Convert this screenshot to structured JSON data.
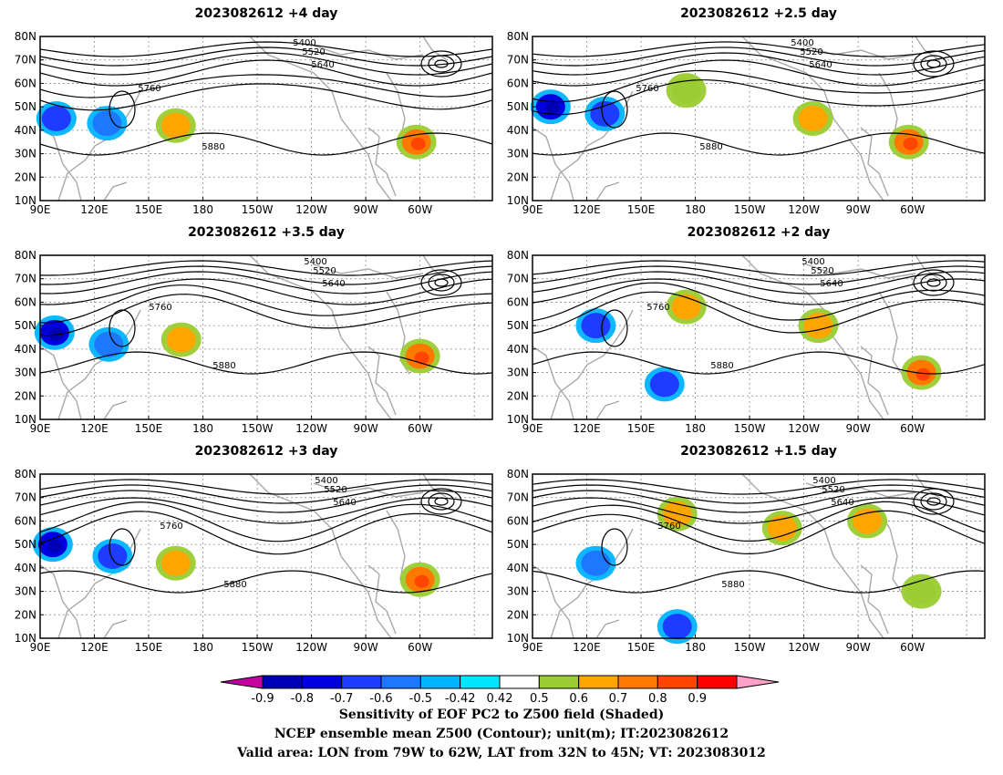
{
  "panels": [
    {
      "id": "p1",
      "title": "2023082612 +4 day"
    },
    {
      "id": "p2",
      "title": "2023082612 +2.5 day"
    },
    {
      "id": "p3",
      "title": "2023082612 +3.5 day"
    },
    {
      "id": "p4",
      "title": "2023082612 +2 day"
    },
    {
      "id": "p5",
      "title": "2023082612 +3 day"
    },
    {
      "id": "p6",
      "title": "2023082612 +1.5 day"
    }
  ],
  "map": {
    "lon_range": [
      90,
      340
    ],
    "lat_range": [
      10,
      80
    ],
    "lat_ticks": [
      "10N",
      "20N",
      "30N",
      "40N",
      "50N",
      "60N",
      "70N",
      "80N"
    ],
    "lon_ticks": [
      "90E",
      "120E",
      "150E",
      "180",
      "150W",
      "120W",
      "90W",
      "60W"
    ],
    "contour_labels": [
      "5400",
      "5520",
      "5640",
      "5760",
      "5880"
    ],
    "sensitivity_regions": [
      {
        "panel": 0,
        "lon": 165,
        "lat": 42,
        "value": 0.6
      },
      {
        "panel": 0,
        "lon": 298,
        "lat": 35,
        "value": 0.7
      },
      {
        "panel": 0,
        "lon": 99,
        "lat": 45,
        "value": -0.6
      },
      {
        "panel": 0,
        "lon": 127,
        "lat": 43,
        "value": -0.5
      },
      {
        "panel": 1,
        "lon": 100,
        "lat": 50,
        "value": -0.7
      },
      {
        "panel": 1,
        "lon": 130,
        "lat": 47,
        "value": -0.6
      },
      {
        "panel": 1,
        "lon": 245,
        "lat": 45,
        "value": 0.6
      },
      {
        "panel": 1,
        "lon": 298,
        "lat": 35,
        "value": 0.7
      },
      {
        "panel": 1,
        "lon": 175,
        "lat": 57,
        "value": 0.5
      },
      {
        "panel": 2,
        "lon": 98,
        "lat": 47,
        "value": -0.7
      },
      {
        "panel": 2,
        "lon": 168,
        "lat": 44,
        "value": 0.6
      },
      {
        "panel": 2,
        "lon": 300,
        "lat": 37,
        "value": 0.7
      },
      {
        "panel": 2,
        "lon": 128,
        "lat": 42,
        "value": -0.5
      },
      {
        "panel": 3,
        "lon": 175,
        "lat": 58,
        "value": 0.6
      },
      {
        "panel": 3,
        "lon": 248,
        "lat": 50,
        "value": 0.6
      },
      {
        "panel": 3,
        "lon": 163,
        "lat": 25,
        "value": -0.6
      },
      {
        "panel": 3,
        "lon": 125,
        "lat": 50,
        "value": -0.6
      },
      {
        "panel": 3,
        "lon": 305,
        "lat": 30,
        "value": 0.7
      },
      {
        "panel": 4,
        "lon": 97,
        "lat": 50,
        "value": -0.7
      },
      {
        "panel": 4,
        "lon": 165,
        "lat": 42,
        "value": 0.6
      },
      {
        "panel": 4,
        "lon": 300,
        "lat": 35,
        "value": 0.7
      },
      {
        "panel": 4,
        "lon": 130,
        "lat": 45,
        "value": -0.6
      },
      {
        "panel": 5,
        "lon": 170,
        "lat": 63,
        "value": 0.6
      },
      {
        "panel": 5,
        "lon": 228,
        "lat": 57,
        "value": 0.6
      },
      {
        "panel": 5,
        "lon": 275,
        "lat": 60,
        "value": 0.6
      },
      {
        "panel": 5,
        "lon": 125,
        "lat": 42,
        "value": -0.5
      },
      {
        "panel": 5,
        "lon": 170,
        "lat": 15,
        "value": -0.6
      },
      {
        "panel": 5,
        "lon": 305,
        "lat": 30,
        "value": 0.5
      }
    ]
  },
  "colorbar": {
    "labels": [
      "-0.9",
      "-0.8",
      "-0.7",
      "-0.6",
      "-0.5",
      "-0.42",
      "0.42",
      "0.5",
      "0.6",
      "0.7",
      "0.8",
      "0.9"
    ],
    "colors": [
      "#c4009e",
      "#0000b4",
      "#0000e0",
      "#1e3cff",
      "#1e78ff",
      "#00b4ff",
      "#00e6ff",
      "#ffffff",
      "#9acd32",
      "#ffa500",
      "#ff7800",
      "#ff4500",
      "#ff0000",
      "#ffa0c8"
    ]
  },
  "caption": {
    "line1": "Sensitivity of EOF PC2 to Z500 field (Shaded)",
    "line2": "NCEP ensemble mean Z500 (Contour); unit(m); IT:2023082612",
    "line3": "Valid area: LON from 79W to 62W, LAT from 32N to 45N; VT: 2023083012"
  }
}
